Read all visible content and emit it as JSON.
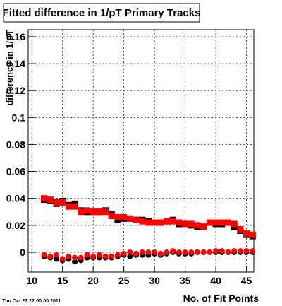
{
  "chart_data": {
    "type": "scatter",
    "title": "Fitted difference in 1/pT Primary Tracks",
    "xlabel": "No. of Fit Points",
    "ylabel": "difference in 1/pT",
    "annotations": [
      "Thu Oct 27 22:00:00 2011"
    ],
    "x": [
      12,
      13,
      14,
      15,
      16,
      17,
      18,
      19,
      20,
      21,
      22,
      23,
      24,
      25,
      26,
      27,
      28,
      29,
      30,
      31,
      32,
      33,
      34,
      35,
      36,
      37,
      38,
      39,
      40,
      41,
      42,
      43,
      44,
      45,
      46
    ],
    "series": [
      {
        "color": "#000000",
        "marker": "square",
        "values": [
          0.039,
          0.038,
          0.036,
          0.038,
          0.035,
          0.036,
          0.031,
          0.03,
          0.03,
          0.03,
          0.031,
          0.028,
          0.024,
          0.025,
          0.025,
          0.024,
          0.024,
          0.023,
          0.022,
          0.022,
          0.023,
          0.024,
          0.021,
          0.021,
          0.02,
          0.019,
          0.019,
          0.022,
          0.021,
          0.021,
          0.022,
          0.019,
          0.016,
          0.013,
          0.012
        ]
      },
      {
        "color": "#000000",
        "marker": "circle",
        "values": [
          -0.003,
          -0.004,
          -0.005,
          -0.006,
          -0.005,
          -0.007,
          -0.006,
          -0.004,
          -0.004,
          -0.004,
          -0.004,
          -0.004,
          -0.003,
          -0.002,
          -0.003,
          -0.002,
          -0.002,
          -0.002,
          -0.001,
          -0.002,
          -0.001,
          0.0,
          -0.001,
          -0.001,
          -0.001,
          0.0,
          0.0,
          0.0,
          0.0,
          0.0,
          0.0,
          0.0,
          0.0,
          0.0,
          0.0
        ]
      },
      {
        "color": "#ff0000",
        "marker": "square",
        "values": [
          0.04,
          0.039,
          0.037,
          0.037,
          0.034,
          0.034,
          0.03,
          0.031,
          0.03,
          0.03,
          0.03,
          0.027,
          0.026,
          0.026,
          0.025,
          0.024,
          0.023,
          0.022,
          0.022,
          0.022,
          0.023,
          0.023,
          0.022,
          0.021,
          0.021,
          0.02,
          0.019,
          0.022,
          0.022,
          0.022,
          0.022,
          0.021,
          0.017,
          0.014,
          0.013
        ]
      },
      {
        "color": "#ff0000",
        "marker": "circle",
        "values": [
          -0.002,
          -0.003,
          -0.002,
          -0.005,
          -0.003,
          -0.004,
          -0.004,
          -0.002,
          -0.003,
          -0.002,
          -0.003,
          -0.003,
          -0.002,
          -0.001,
          0.0,
          -0.001,
          0.0,
          0.0,
          0.0,
          -0.001,
          0.0,
          0.001,
          0.0,
          0.0,
          0.0,
          0.0,
          0.0,
          0.0,
          0.001,
          0.001,
          0.0,
          0.001,
          0.001,
          0.001,
          0.001
        ]
      }
    ],
    "xlim": [
      9.4,
      46.2
    ],
    "ylim": [
      -0.0147,
      0.1652
    ],
    "xticks": [
      10,
      15,
      20,
      25,
      30,
      35,
      40,
      45
    ],
    "yticks": [
      0,
      0.02,
      0.04,
      0.06,
      0.08,
      0.1,
      0.12,
      0.14,
      0.16
    ],
    "grid": true
  }
}
